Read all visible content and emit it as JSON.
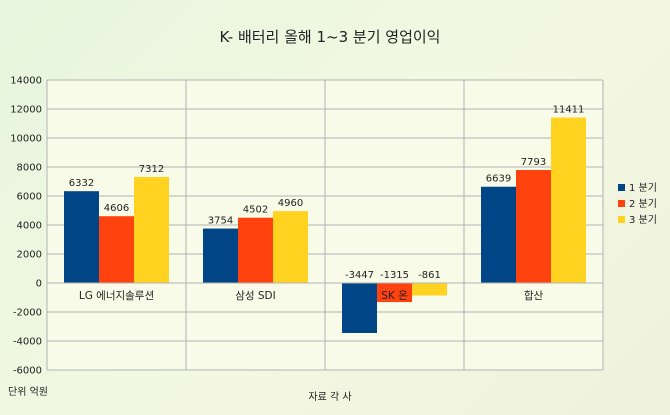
{
  "chart_data": {
    "type": "bar",
    "title": "K- 배터리 올해  1~3 분기 영업이익",
    "xlabel": "자료 각 사",
    "unit_note": "단위 억원",
    "categories": [
      "LG 에너지솔루션",
      "삼성 SDI",
      "SK 온",
      "합산"
    ],
    "series": [
      {
        "name": "1 분기",
        "color": "#004586",
        "values": [
          6332,
          3754,
          -3447,
          6639
        ]
      },
      {
        "name": "2 분기",
        "color": "#ff420e",
        "values": [
          4606,
          4502,
          -1315,
          7793
        ]
      },
      {
        "name": "3 분기",
        "color": "#ffd320",
        "values": [
          7312,
          4960,
          -861,
          11411
        ]
      }
    ],
    "ylim": [
      -6000,
      14000
    ],
    "yticks": [
      -6000,
      -4000,
      -2000,
      0,
      2000,
      4000,
      6000,
      8000,
      10000,
      12000,
      14000
    ],
    "grid": true,
    "legend": "right"
  }
}
